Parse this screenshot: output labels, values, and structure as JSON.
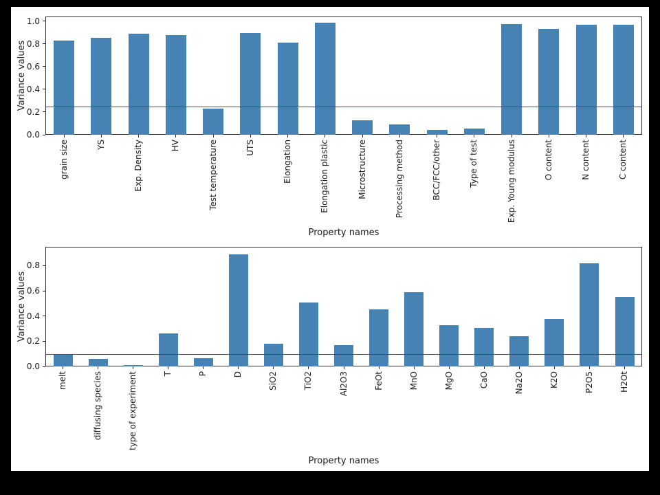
{
  "figure": {
    "background": "#ffffff",
    "bar_color": "#4682b4",
    "threshold_color": "#ff0000",
    "spine_color": "#2b2b2b"
  },
  "chart_data": [
    {
      "type": "bar",
      "title": "",
      "xlabel": "Property names",
      "ylabel": "Variance values",
      "categories": [
        "grain size",
        "YS",
        "Exp. Density",
        "HV",
        "Test temperature",
        "UTS",
        "Elongation",
        "Elongation plastic",
        "Microstructure",
        "Processing method",
        "BCC/FCC/other",
        "Type of test",
        "Exp. Young modulus",
        "O content",
        "N content",
        "C content"
      ],
      "values": [
        0.83,
        0.85,
        0.89,
        0.875,
        0.23,
        0.895,
        0.81,
        0.985,
        0.125,
        0.09,
        0.045,
        0.055,
        0.975,
        0.93,
        0.965,
        0.97
      ],
      "ylim": [
        0,
        1.04
      ],
      "yticks": [
        0.0,
        0.2,
        0.4,
        0.6,
        0.8,
        1.0
      ],
      "ytick_labels": [
        "0.0",
        "0.2",
        "0.4",
        "0.6",
        "0.8",
        "1.0"
      ],
      "threshold": 0.25,
      "grid": false,
      "legend_position": "none"
    },
    {
      "type": "bar",
      "title": "",
      "xlabel": "Property names",
      "ylabel": "Variance values",
      "categories": [
        "melt",
        "diffusing species",
        "type of experiment",
        "T",
        "P",
        "D",
        "SiO2",
        "TiO2",
        "Al2O3",
        "FeOt",
        "MnO",
        "MgO",
        "CaO",
        "Na2O",
        "K2O",
        "P2O5",
        "H2Ot"
      ],
      "values": [
        0.095,
        0.06,
        0.01,
        0.265,
        0.065,
        0.89,
        0.18,
        0.51,
        0.17,
        0.455,
        0.59,
        0.33,
        0.305,
        0.24,
        0.375,
        0.82,
        0.55
      ],
      "ylim": [
        0,
        0.95
      ],
      "yticks": [
        0.0,
        0.2,
        0.4,
        0.6,
        0.8
      ],
      "ytick_labels": [
        "0.0",
        "0.2",
        "0.4",
        "0.6",
        "0.8"
      ],
      "threshold": 0.1,
      "grid": false,
      "legend_position": "none"
    }
  ]
}
